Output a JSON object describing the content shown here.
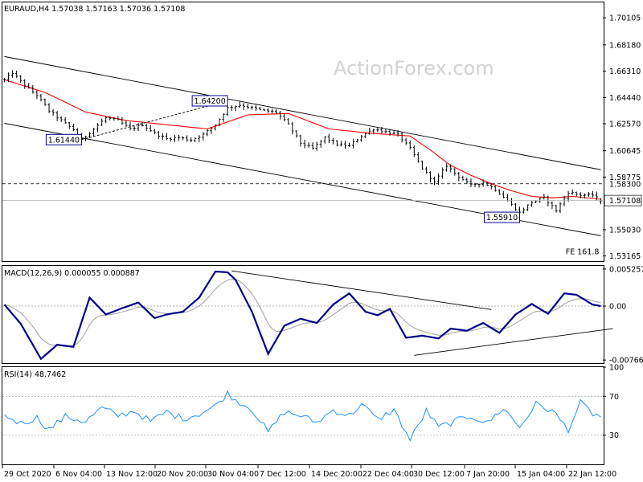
{
  "header": {
    "main": "EURAUD,H4  1.57038  1.57163  1.57036  1.57108",
    "macd": "MACD(12,26,9) 0.000055 0.000887",
    "rsi": "RSI(14) 48.7462"
  },
  "watermark": "ActionForex.com",
  "colors": {
    "price_bars": "#000000",
    "sma": "#ff0000",
    "macd_line": "#00008b",
    "macd_signal": "#a0a0a0",
    "rsi_line": "#1e90ff",
    "channel": "#000000",
    "label_border": "#00008b",
    "grid_dash": "#999999"
  },
  "chart_data": [
    {
      "type": "line",
      "panel": "price",
      "symbol": "EURAUD",
      "timeframe": "H4",
      "ohlc_last": {
        "open": "1.57038",
        "high": "1.57163",
        "low": "1.57036",
        "close": "1.57108"
      },
      "y_ticks": [
        "1.70105",
        "1.68180",
        "1.66310",
        "1.64440",
        "1.62570",
        "1.60645",
        "1.58775",
        "1.55030",
        "1.53165"
      ],
      "ylim": [
        1.528,
        1.712
      ],
      "x_tick_labels": [
        "29 Oct 2020",
        "6 Nov 04:00",
        "13 Nov 12:00",
        "20 Nov 20:00",
        "30 Nov 04:00",
        "7 Dec 12:00",
        "14 Dec 20:00",
        "22 Dec 04:00",
        "30 Dec 12:00",
        "7 Jan 20:00",
        "15 Jan 04:00",
        "22 Jan 12:00"
      ],
      "price_anchors": {
        "t": [
          0,
          2,
          5,
          8,
          11,
          14,
          17,
          19,
          22,
          25,
          28,
          31,
          34,
          37,
          40,
          43,
          46,
          49,
          52,
          55,
          58,
          61,
          64,
          67,
          70,
          73,
          76,
          79,
          82,
          85,
          88,
          91,
          94,
          97,
          100,
          103,
          106,
          109,
          112,
          115,
          118,
          121,
          124,
          127,
          130,
          133,
          136,
          139,
          142,
          145,
          147
        ],
        "close": [
          1.657,
          1.662,
          1.653,
          1.646,
          1.635,
          1.628,
          1.6215,
          1.6144,
          1.622,
          1.63,
          1.628,
          1.622,
          1.625,
          1.619,
          1.615,
          1.616,
          1.614,
          1.618,
          1.625,
          1.637,
          1.639,
          1.637,
          1.635,
          1.634,
          1.625,
          1.612,
          1.608,
          1.616,
          1.611,
          1.61,
          1.617,
          1.622,
          1.62,
          1.618,
          1.608,
          1.594,
          1.584,
          1.596,
          1.588,
          1.582,
          1.584,
          1.579,
          1.571,
          1.5625,
          1.57,
          1.573,
          1.564,
          1.577,
          1.575,
          1.575,
          1.5711
        ]
      },
      "sma_anchors": {
        "t": [
          0,
          10,
          20,
          30,
          40,
          50,
          60,
          70,
          80,
          90,
          100,
          105,
          110,
          115,
          120,
          125,
          130,
          135,
          140,
          147
        ],
        "value": [
          1.657,
          1.648,
          1.634,
          1.628,
          1.625,
          1.622,
          1.632,
          1.633,
          1.622,
          1.619,
          1.617,
          1.607,
          1.596,
          1.589,
          1.583,
          1.578,
          1.574,
          1.573,
          1.574,
          1.572
        ]
      },
      "channel_upper": {
        "start": {
          "t": 0,
          "y": 1.6735
        },
        "end": {
          "t": 147,
          "y": 1.593
        }
      },
      "channel_lower": {
        "start": {
          "t": 0,
          "y": 1.626
        },
        "end": {
          "t": 147,
          "y": 1.546
        }
      },
      "projection_line": {
        "from": {
          "t": 19,
          "y": 1.6144
        },
        "to": {
          "t": 55,
          "y": 1.642
        }
      },
      "horizontal_levels": [
        {
          "value": 1.583,
          "label": "1.58300",
          "style": "dashed"
        },
        {
          "value": 1.57108,
          "label": "1.57108",
          "style": "solid-grey"
        }
      ],
      "annotations": [
        {
          "text": "1.64200",
          "t": 55,
          "y": 1.642,
          "box": "left"
        },
        {
          "text": "1.61440",
          "t": 19,
          "y": 1.6144,
          "box": "left"
        },
        {
          "text": "1.55910",
          "t": 127,
          "y": 1.5591,
          "box": "left"
        },
        {
          "text": "FE 161.8",
          "t": 147,
          "y": 1.5345,
          "box": "none"
        }
      ]
    },
    {
      "type": "line",
      "panel": "macd",
      "name": "MACD(12,26,9)",
      "values_shown": [
        "0.000055",
        "0.000887"
      ],
      "y_ticks": [
        "0.005257",
        "0.00",
        "-0.007663"
      ],
      "ylim": [
        -0.0081,
        0.0057
      ],
      "macd_anchors": {
        "t": [
          0,
          4,
          9,
          13,
          17,
          21,
          25,
          29,
          33,
          37,
          40,
          44,
          48,
          52,
          55,
          57,
          61,
          65,
          69,
          73,
          77,
          81,
          85,
          89,
          92,
          95,
          99,
          103,
          107,
          110,
          114,
          118,
          122,
          126,
          130,
          134,
          138,
          141,
          145,
          147
        ],
        "value": [
          0.0002,
          -0.0025,
          -0.0075,
          -0.0055,
          -0.0058,
          0.0012,
          -0.0012,
          -0.0003,
          0.0005,
          -0.0017,
          -0.0012,
          -0.0008,
          0.0012,
          0.0049,
          0.0048,
          0.0037,
          -0.0008,
          -0.0068,
          -0.0028,
          -0.0018,
          -0.0024,
          0.0002,
          0.0018,
          -0.0008,
          -0.0013,
          -0.0004,
          -0.0045,
          -0.0042,
          -0.0046,
          -0.0032,
          -0.0035,
          -0.0024,
          -0.0038,
          -0.0012,
          0.0003,
          -0.0011,
          0.0018,
          0.0016,
          0.0002,
          0.0
        ]
      },
      "trendlines": [
        {
          "start": {
            "t": 56,
            "y": 0.005
          },
          "end": {
            "t": 120,
            "y": -0.0005
          }
        },
        {
          "start": {
            "t": 101,
            "y": -0.007
          },
          "end": {
            "t": 150,
            "y": -0.0032
          }
        }
      ]
    },
    {
      "type": "line",
      "panel": "rsi",
      "name": "RSI(14)",
      "value_shown": "48.7462",
      "y_ticks": [
        "100",
        "70",
        "30",
        "0"
      ],
      "ylim": [
        0,
        100
      ],
      "levels": [
        70,
        30
      ],
      "rsi_anchors": {
        "t": [
          0,
          4,
          8,
          11,
          15,
          20,
          24,
          28,
          32,
          36,
          40,
          44,
          48,
          52,
          55,
          57,
          61,
          65,
          69,
          73,
          77,
          81,
          85,
          88,
          92,
          96,
          100,
          104,
          107,
          111,
          115,
          119,
          123,
          127,
          131,
          135,
          139,
          142,
          145,
          147
        ],
        "value": [
          51,
          42,
          48,
          36,
          49,
          44,
          58,
          50,
          55,
          44,
          54,
          47,
          52,
          60,
          73,
          66,
          57,
          33,
          54,
          50,
          43,
          56,
          50,
          62,
          46,
          56,
          25,
          55,
          38,
          44,
          50,
          42,
          58,
          38,
          62,
          55,
          36,
          63,
          52,
          48.7
        ]
      }
    }
  ]
}
